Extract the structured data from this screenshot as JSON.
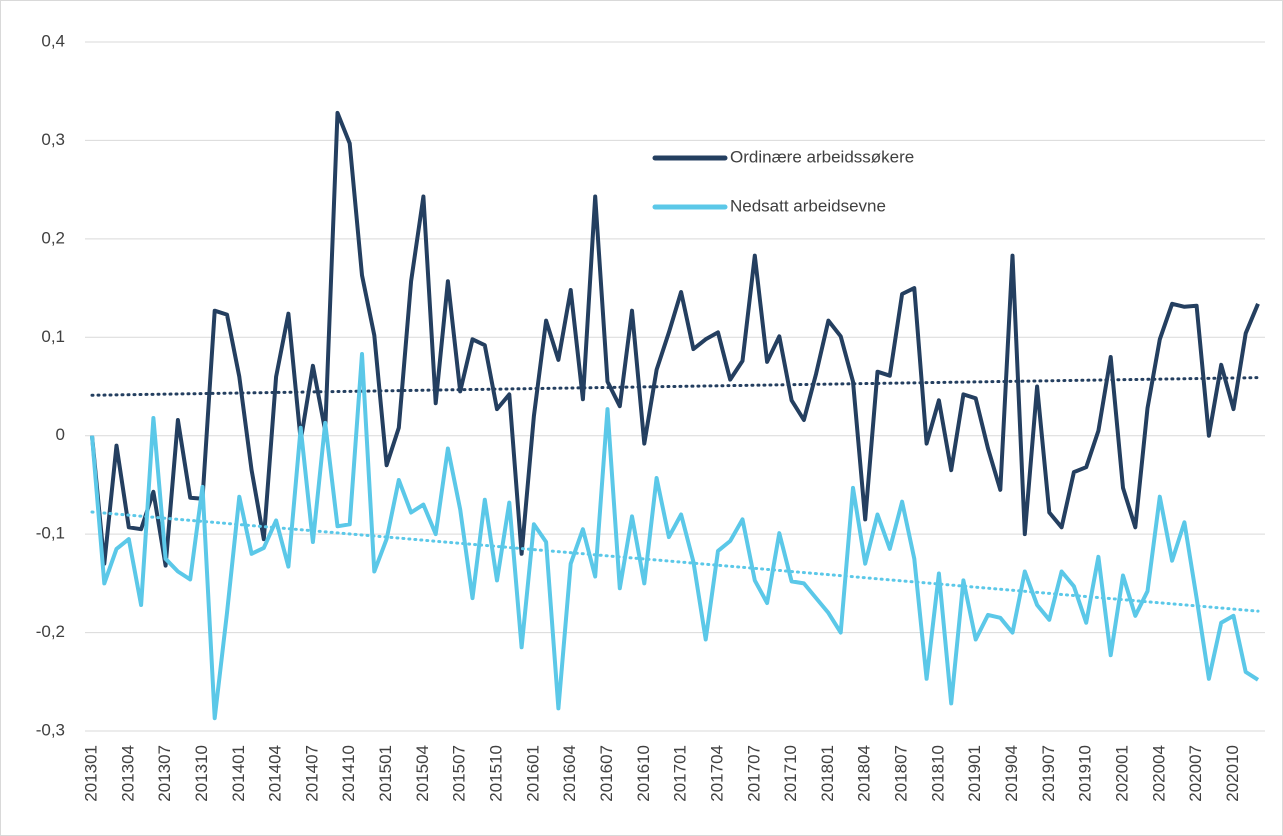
{
  "chart_data": {
    "type": "line",
    "categories": [
      "201301",
      null,
      null,
      "201304",
      null,
      null,
      "201307",
      null,
      null,
      "201310",
      null,
      null,
      "201401",
      null,
      null,
      "201404",
      null,
      null,
      "201407",
      null,
      null,
      "201410",
      null,
      null,
      "201501",
      null,
      null,
      "201504",
      null,
      null,
      "201507",
      null,
      null,
      "201510",
      null,
      null,
      "201601",
      null,
      null,
      "201604",
      null,
      null,
      "201607",
      null,
      null,
      "201610",
      null,
      null,
      "201701",
      null,
      null,
      "201704",
      null,
      null,
      "201707",
      null,
      null,
      "201710",
      null,
      null,
      "201801",
      null,
      null,
      "201804",
      null,
      null,
      "201807",
      null,
      null,
      "201810",
      null,
      null,
      "201901",
      null,
      null,
      "201904",
      null,
      null,
      "201907",
      null,
      null,
      "201910",
      null,
      null,
      "202001",
      null,
      null,
      "202004",
      null,
      null,
      "202007",
      null,
      null,
      "202010",
      null,
      null
    ],
    "series": [
      {
        "name": "Ordinære arbeidssøkere",
        "color": "#243f60",
        "values": [
          0,
          -0.13,
          -0.01,
          -0.093,
          -0.095,
          -0.057,
          -0.132,
          0.016,
          -0.063,
          -0.064,
          0.127,
          0.123,
          0.06,
          -0.035,
          -0.105,
          0.06,
          0.124,
          -0.005,
          0.071,
          0.005,
          0.328,
          0.297,
          0.163,
          0.102,
          -0.03,
          0.008,
          0.157,
          0.243,
          0.033,
          0.157,
          0.045,
          0.098,
          0.092,
          0.027,
          0.042,
          -0.12,
          0.02,
          0.117,
          0.077,
          0.148,
          0.037,
          0.243,
          0.055,
          0.03,
          0.127,
          -0.008,
          0.067,
          0.105,
          0.146,
          0.088,
          0.098,
          0.105,
          0.057,
          0.076,
          0.183,
          0.075,
          0.101,
          0.036,
          0.016,
          0.063,
          0.117,
          0.101,
          0.055,
          -0.085,
          0.065,
          0.061,
          0.144,
          0.15,
          -0.008,
          0.036,
          -0.035,
          0.042,
          0.038,
          -0.013,
          -0.055,
          0.183,
          -0.1,
          0.05,
          -0.078,
          -0.093,
          -0.037,
          -0.032,
          0.005,
          0.08,
          -0.053,
          -0.093,
          0.028,
          0.098,
          0.134,
          0.131,
          0.132,
          0,
          0.072,
          0.027,
          0.104,
          0.134
        ]
      },
      {
        "name": "Nedsatt arbeidsevne",
        "color": "#5bc8e8",
        "values": [
          0,
          -0.15,
          -0.115,
          -0.105,
          -0.172,
          0.018,
          -0.125,
          -0.138,
          -0.146,
          -0.052,
          -0.287,
          -0.18,
          -0.062,
          -0.12,
          -0.114,
          -0.086,
          -0.133,
          0.008,
          -0.108,
          0.013,
          -0.092,
          -0.09,
          0.083,
          -0.138,
          -0.105,
          -0.045,
          -0.078,
          -0.07,
          -0.1,
          -0.013,
          -0.075,
          -0.165,
          -0.065,
          -0.147,
          -0.068,
          -0.215,
          -0.09,
          -0.108,
          -0.277,
          -0.13,
          -0.095,
          -0.143,
          0.027,
          -0.155,
          -0.082,
          -0.15,
          -0.043,
          -0.103,
          -0.08,
          -0.128,
          -0.207,
          -0.117,
          -0.107,
          -0.085,
          -0.147,
          -0.17,
          -0.099,
          -0.148,
          -0.15,
          -0.165,
          -0.18,
          -0.2,
          -0.053,
          -0.13,
          -0.08,
          -0.115,
          -0.067,
          -0.125,
          -0.247,
          -0.14,
          -0.272,
          -0.147,
          -0.207,
          -0.182,
          -0.185,
          -0.2,
          -0.138,
          -0.172,
          -0.187,
          -0.138,
          -0.153,
          -0.19,
          -0.123,
          -0.223,
          -0.142,
          -0.183,
          -0.158,
          -0.062,
          -0.127,
          -0.088,
          -0.165,
          -0.247,
          -0.19,
          -0.183,
          -0.24,
          -0.248
        ]
      }
    ],
    "ylim": [
      -0.3,
      0.4
    ],
    "yticks": [
      {
        "value": -0.3,
        "label": "-0,3"
      },
      {
        "value": -0.2,
        "label": "-0,2"
      },
      {
        "value": -0.1,
        "label": "-0,1"
      },
      0,
      {
        "value": 0.1,
        "label": "0,1"
      },
      {
        "value": 0.2,
        "label": "0,2"
      },
      {
        "value": 0.3,
        "label": "0,3"
      },
      {
        "value": 0.4,
        "label": "0,4"
      }
    ],
    "grid": true,
    "trendline": true,
    "legend": "upper-right"
  }
}
